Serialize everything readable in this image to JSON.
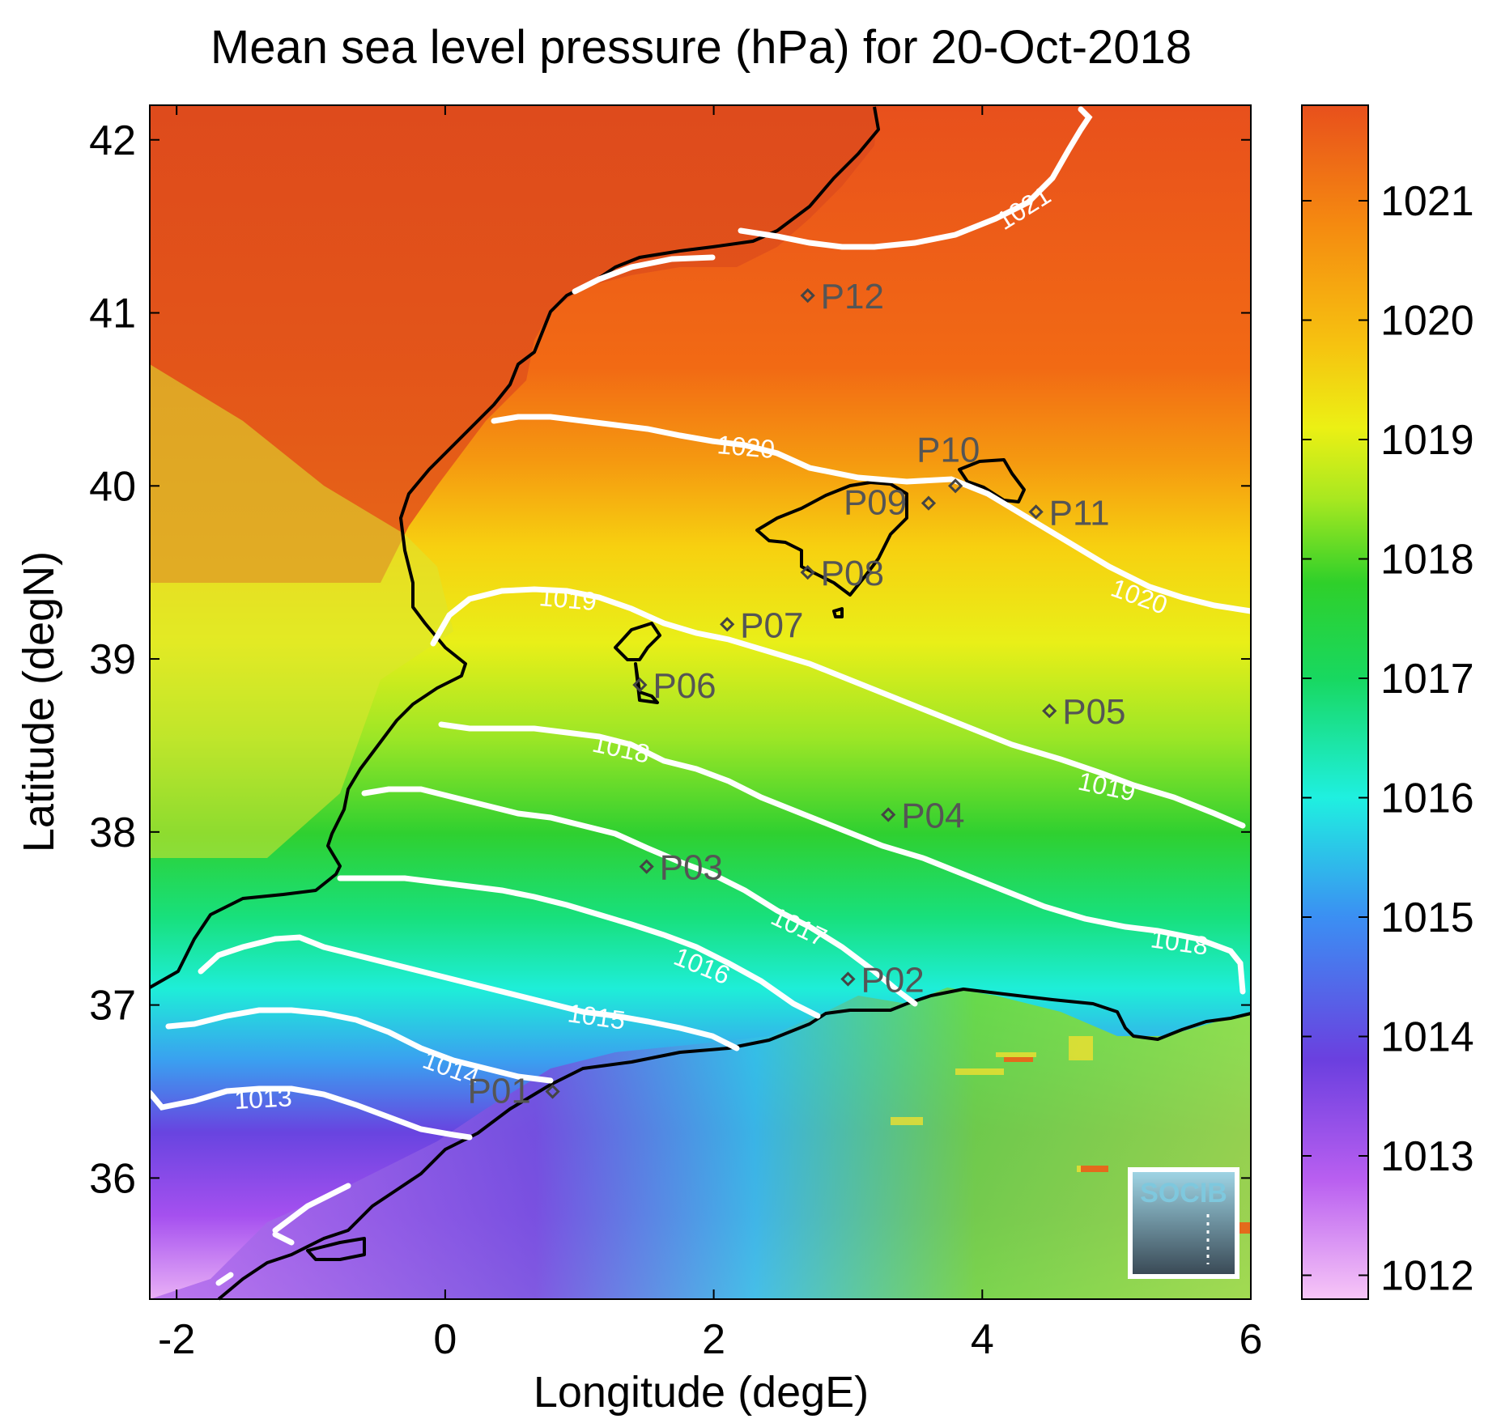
{
  "title": "Mean sea level pressure (hPa) for 20-Oct-2018",
  "xlabel": "Longitude (degE)",
  "ylabel": "Latitude (degN)",
  "x_ticks": [
    "-2",
    "0",
    "2",
    "4",
    "6"
  ],
  "y_ticks": [
    "42",
    "41",
    "40",
    "39",
    "38",
    "37",
    "36"
  ],
  "colorbar": {
    "ticks": [
      "1021",
      "1020",
      "1019",
      "1018",
      "1017",
      "1016",
      "1015",
      "1014",
      "1013",
      "1012"
    ],
    "colors": [
      "#f7c6f7",
      "#b95ff0",
      "#6b3fdf",
      "#3b8ff3",
      "#1ff0e0",
      "#18d860",
      "#2fd02a",
      "#a8e820",
      "#ecf014",
      "#f6c210",
      "#f58a10",
      "#e8501c"
    ]
  },
  "contour_labels": [
    "1013",
    "1014",
    "1015",
    "1016",
    "1017",
    "1018",
    "1018",
    "1019",
    "1019",
    "1020",
    "1020",
    "1021"
  ],
  "stations": [
    "P01",
    "P02",
    "P03",
    "P04",
    "P05",
    "P06",
    "P07",
    "P08",
    "P09",
    "P10",
    "P11",
    "P12"
  ],
  "logo": "SOCIB",
  "chart_data": {
    "type": "heatmap",
    "title": "Mean sea level pressure (hPa) for 20-Oct-2018",
    "xlabel": "Longitude (degE)",
    "ylabel": "Latitude (degN)",
    "xlim": [
      -2.2,
      6
    ],
    "ylim": [
      35.3,
      42.2
    ],
    "color_range": [
      1011.8,
      1021.8
    ],
    "contour_levels": [
      1013,
      1014,
      1015,
      1016,
      1017,
      1018,
      1019,
      1020,
      1021
    ],
    "stations": [
      {
        "name": "P01",
        "lon": 0.8,
        "lat": 36.5
      },
      {
        "name": "P02",
        "lon": 3.0,
        "lat": 37.15
      },
      {
        "name": "P03",
        "lon": 1.5,
        "lat": 37.8
      },
      {
        "name": "P04",
        "lon": 3.3,
        "lat": 38.1
      },
      {
        "name": "P05",
        "lon": 4.5,
        "lat": 38.7
      },
      {
        "name": "P06",
        "lon": 1.45,
        "lat": 38.85
      },
      {
        "name": "P07",
        "lon": 2.1,
        "lat": 39.2
      },
      {
        "name": "P08",
        "lon": 2.7,
        "lat": 39.5
      },
      {
        "name": "P09",
        "lon": 3.6,
        "lat": 39.9
      },
      {
        "name": "P10",
        "lon": 3.8,
        "lat": 40.0
      },
      {
        "name": "P11",
        "lon": 4.4,
        "lat": 39.85
      },
      {
        "name": "P12",
        "lon": 2.7,
        "lat": 41.1
      }
    ]
  }
}
